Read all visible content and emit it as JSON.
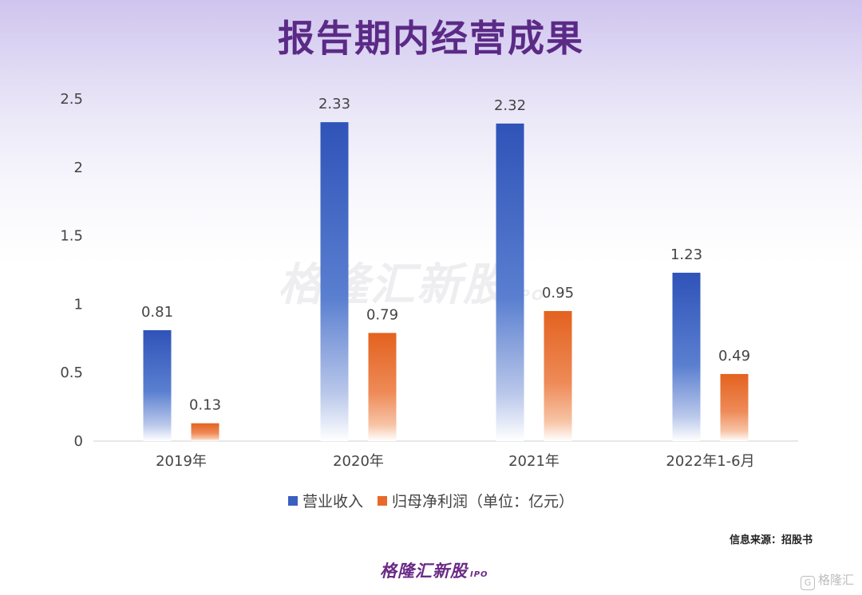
{
  "title": "报告期内经营成果",
  "chart_data": {
    "type": "bar",
    "categories": [
      "2019年",
      "2020年",
      "2021年",
      "2022年1-6月"
    ],
    "series": [
      {
        "name": "营业收入",
        "values": [
          0.81,
          2.33,
          2.32,
          1.23
        ]
      },
      {
        "name": "归母净利润（单位：亿元）",
        "values": [
          0.13,
          0.79,
          0.95,
          0.49
        ]
      }
    ],
    "yticks": [
      "0",
      "0.5",
      "1",
      "1.5",
      "2",
      "2.5"
    ],
    "ylim": [
      0,
      2.5
    ],
    "grid": false,
    "legend_position": "bottom",
    "colors": [
      "#3a5fc0",
      "#e8692a"
    ]
  },
  "source_text": "信息来源：招股书",
  "footer_logo": {
    "text": "格隆汇新股",
    "suffix": "IPO"
  },
  "watermark": {
    "text": "格隆汇新股",
    "suffix": "IPO"
  },
  "corner_mark": {
    "icon": "g-logo-icon",
    "text": "格隆汇"
  }
}
